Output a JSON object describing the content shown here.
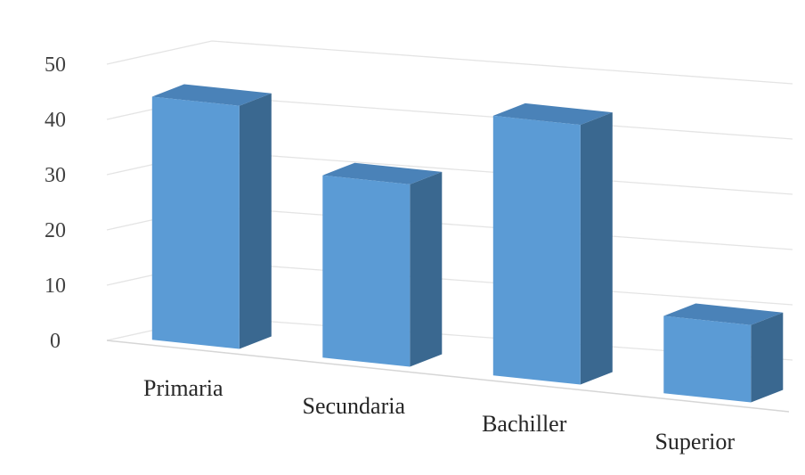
{
  "chart_data": {
    "type": "bar",
    "style": "3d-column",
    "categories": [
      "Primaria",
      "Secundaria",
      "Bachiller",
      "Superior"
    ],
    "values": [
      44,
      33,
      47,
      14
    ],
    "ylim": [
      0,
      50
    ],
    "yticks": [
      0,
      10,
      20,
      30,
      40,
      50
    ],
    "grid": true,
    "legend": "none",
    "title": "",
    "xlabel": "",
    "ylabel": "",
    "colors": {
      "front": "#5b9bd5",
      "side": "#3a6890",
      "top": "#4a82b8",
      "grid": "#e4e4e4",
      "axis": "#d6d6d6"
    }
  }
}
